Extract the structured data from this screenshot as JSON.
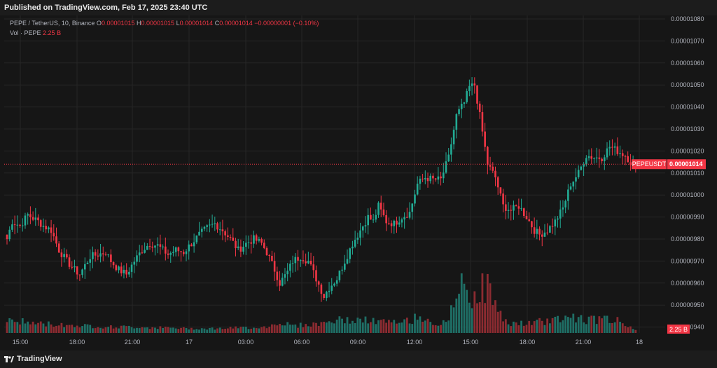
{
  "header": {
    "published": "Published on TradingView.com, Feb 17, 2025 23:40 UTC"
  },
  "legend": {
    "symbol": "PEPE / TetherUS, 10, Binance",
    "o_label": "O",
    "o_value": "0.00001015",
    "h_label": "H",
    "h_value": "0.00001015",
    "l_label": "L",
    "l_value": "0.00001014",
    "c_label": "C",
    "c_value": "0.00001014",
    "change": "−0.00000001 (−0.10%)",
    "vol_label": "Vol · PEPE",
    "vol_value": "2.25 B"
  },
  "footer": {
    "brand": "TradingView"
  },
  "colors": {
    "up": "#22ab94",
    "down": "#f23645",
    "up_vol": "#1f6f66",
    "down_vol": "#8c2b31",
    "grid": "#262626"
  },
  "chart_data": {
    "type": "candlestick",
    "symbol": "PEPEUSDT",
    "interval": "10",
    "y_ticks": [
      "0.00001080",
      "0.00001070",
      "0.00001060",
      "0.00001050",
      "0.00001040",
      "0.00001030",
      "0.00001020",
      "0.00001010",
      "0.00001000",
      "0.00000990",
      "0.00000980",
      "0.00000970",
      "0.00000960",
      "0.00000950",
      "0.00000940"
    ],
    "x_ticks": [
      "15:00",
      "18:00",
      "21:00",
      "17",
      "03:00",
      "06:00",
      "09:00",
      "12:00",
      "15:00",
      "18:00",
      "21:00",
      "18"
    ],
    "ylim": [
      9.37e-06,
      1.083e-05
    ],
    "last_price_label": "0.00001014",
    "last_price_tag": "PEPEUSDT",
    "last_volume_label": "2.25 B",
    "close_anchors": [
      [
        0,
        9.8
      ],
      [
        2,
        9.88
      ],
      [
        5,
        9.86
      ],
      [
        8,
        9.91
      ],
      [
        12,
        9.88
      ],
      [
        14,
        9.86
      ],
      [
        17,
        9.84
      ],
      [
        20,
        9.75
      ],
      [
        23,
        9.7
      ],
      [
        26,
        9.66
      ],
      [
        28,
        9.64
      ],
      [
        32,
        9.72
      ],
      [
        35,
        9.73
      ],
      [
        38,
        9.74
      ],
      [
        40,
        9.7
      ],
      [
        43,
        9.66
      ],
      [
        46,
        9.64
      ],
      [
        49,
        9.7
      ],
      [
        52,
        9.75
      ],
      [
        55,
        9.78
      ],
      [
        58,
        9.77
      ],
      [
        62,
        9.73
      ],
      [
        65,
        9.75
      ],
      [
        68,
        9.74
      ],
      [
        71,
        9.78
      ],
      [
        74,
        9.82
      ],
      [
        77,
        9.85
      ],
      [
        80,
        9.87
      ],
      [
        83,
        9.84
      ],
      [
        86,
        9.8
      ],
      [
        89,
        9.75
      ],
      [
        92,
        9.78
      ],
      [
        95,
        9.8
      ],
      [
        98,
        9.78
      ],
      [
        100,
        9.74
      ],
      [
        103,
        9.66
      ],
      [
        105,
        9.6
      ],
      [
        108,
        9.65
      ],
      [
        110,
        9.7
      ],
      [
        113,
        9.72
      ],
      [
        116,
        9.7
      ],
      [
        119,
        9.62
      ],
      [
        122,
        9.54
      ],
      [
        124,
        9.58
      ],
      [
        127,
        9.62
      ],
      [
        130,
        9.7
      ],
      [
        133,
        9.78
      ],
      [
        136,
        9.84
      ],
      [
        139,
        9.9
      ],
      [
        141,
        9.88
      ],
      [
        143,
        9.95
      ],
      [
        146,
        9.88
      ],
      [
        149,
        9.87
      ],
      [
        152,
        9.9
      ],
      [
        155,
        9.92
      ],
      [
        158,
        10.05
      ],
      [
        161,
        10.08
      ],
      [
        164,
        10.07
      ],
      [
        167,
        10.07
      ],
      [
        170,
        10.17
      ],
      [
        173,
        10.36
      ],
      [
        176,
        10.42
      ],
      [
        178,
        10.49
      ],
      [
        180,
        10.5
      ],
      [
        182,
        10.36
      ],
      [
        185,
        10.14
      ],
      [
        188,
        10.08
      ],
      [
        191,
        9.95
      ],
      [
        194,
        9.93
      ],
      [
        197,
        9.95
      ],
      [
        200,
        9.9
      ],
      [
        203,
        9.84
      ],
      [
        205,
        9.82
      ],
      [
        208,
        9.84
      ],
      [
        211,
        9.88
      ],
      [
        214,
        9.94
      ],
      [
        217,
        10.05
      ],
      [
        220,
        10.1
      ],
      [
        223,
        10.18
      ],
      [
        226,
        10.17
      ],
      [
        229,
        10.17
      ],
      [
        232,
        10.22
      ],
      [
        235,
        10.2
      ],
      [
        238,
        10.18
      ],
      [
        240,
        10.15
      ],
      [
        242,
        10.14
      ]
    ],
    "volume_profile": [
      [
        0,
        0.3
      ],
      [
        10,
        0.22
      ],
      [
        20,
        0.18
      ],
      [
        30,
        0.15
      ],
      [
        40,
        0.12
      ],
      [
        50,
        0.12
      ],
      [
        60,
        0.1
      ],
      [
        70,
        0.08
      ],
      [
        80,
        0.08
      ],
      [
        90,
        0.1
      ],
      [
        100,
        0.12
      ],
      [
        105,
        0.25
      ],
      [
        110,
        0.15
      ],
      [
        120,
        0.2
      ],
      [
        125,
        0.28
      ],
      [
        130,
        0.3
      ],
      [
        140,
        0.28
      ],
      [
        150,
        0.22
      ],
      [
        155,
        0.3
      ],
      [
        160,
        0.4
      ],
      [
        165,
        0.2
      ],
      [
        170,
        0.22
      ],
      [
        173,
        1.1
      ],
      [
        176,
        1.2
      ],
      [
        179,
        0.9
      ],
      [
        182,
        1.1
      ],
      [
        185,
        1.15
      ],
      [
        188,
        0.75
      ],
      [
        191,
        0.25
      ],
      [
        200,
        0.2
      ],
      [
        210,
        0.3
      ],
      [
        215,
        0.4
      ],
      [
        220,
        0.35
      ],
      [
        225,
        0.3
      ],
      [
        230,
        0.35
      ],
      [
        235,
        0.28
      ],
      [
        242,
        0.05
      ]
    ]
  }
}
